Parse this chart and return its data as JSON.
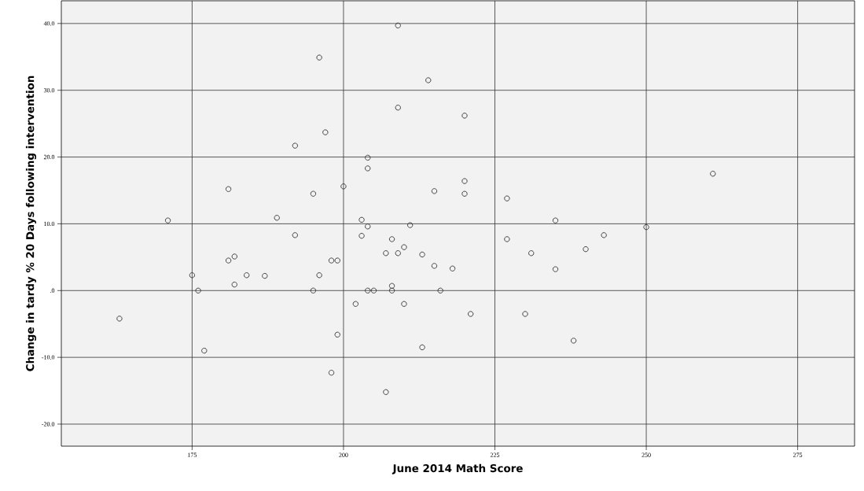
{
  "chart_data": {
    "type": "scatter",
    "xlabel": "June 2014 Math Score",
    "ylabel": "Change in tardy % 20 Days following intervention",
    "xlim": [
      153.4,
      284.4
    ],
    "ylim": [
      -23.3,
      43.4
    ],
    "xticks": [
      175,
      200,
      225,
      250,
      275
    ],
    "yticks": [
      {
        "value": -20,
        "label": "-20.0"
      },
      {
        "value": -10,
        "label": "-10.0"
      },
      {
        "value": 0,
        "label": ".0"
      },
      {
        "value": 10,
        "label": "10.0"
      },
      {
        "value": 20,
        "label": "20.0"
      },
      {
        "value": 30,
        "label": "30.0"
      },
      {
        "value": 40,
        "label": "40.0"
      }
    ],
    "grid": true,
    "marker": "circle",
    "color": "#333333",
    "x": [
      163,
      171,
      175,
      176,
      177,
      181,
      181,
      182,
      182,
      184,
      187,
      189,
      192,
      192,
      195,
      195,
      196,
      196,
      197,
      198,
      198,
      199,
      199,
      200,
      202,
      203,
      203,
      204,
      204,
      204,
      204,
      205,
      207,
      207,
      208,
      208,
      208,
      209,
      209,
      209,
      210,
      210,
      211,
      213,
      213,
      214,
      215,
      215,
      216,
      218,
      220,
      220,
      220,
      221,
      227,
      227,
      230,
      231,
      235,
      235,
      238,
      240,
      243,
      250,
      261
    ],
    "values": [
      -4.2,
      10.5,
      2.3,
      0,
      -9.0,
      15.2,
      4.5,
      5.1,
      0.9,
      2.3,
      2.2,
      10.9,
      21.7,
      8.3,
      14.5,
      0,
      34.9,
      2.3,
      23.7,
      4.5,
      -12.3,
      4.5,
      -6.6,
      15.6,
      -2.0,
      10.6,
      8.2,
      19.9,
      18.3,
      9.6,
      0,
      0,
      5.6,
      -15.2,
      7.7,
      0.7,
      0,
      39.7,
      27.4,
      5.6,
      6.5,
      -2.0,
      9.8,
      5.4,
      -8.5,
      31.5,
      14.9,
      3.7,
      0,
      3.3,
      26.2,
      16.4,
      14.5,
      -3.5,
      13.8,
      7.7,
      -3.5,
      5.6,
      10.5,
      3.2,
      -7.5,
      6.2,
      8.3,
      9.5,
      17.5
    ]
  }
}
